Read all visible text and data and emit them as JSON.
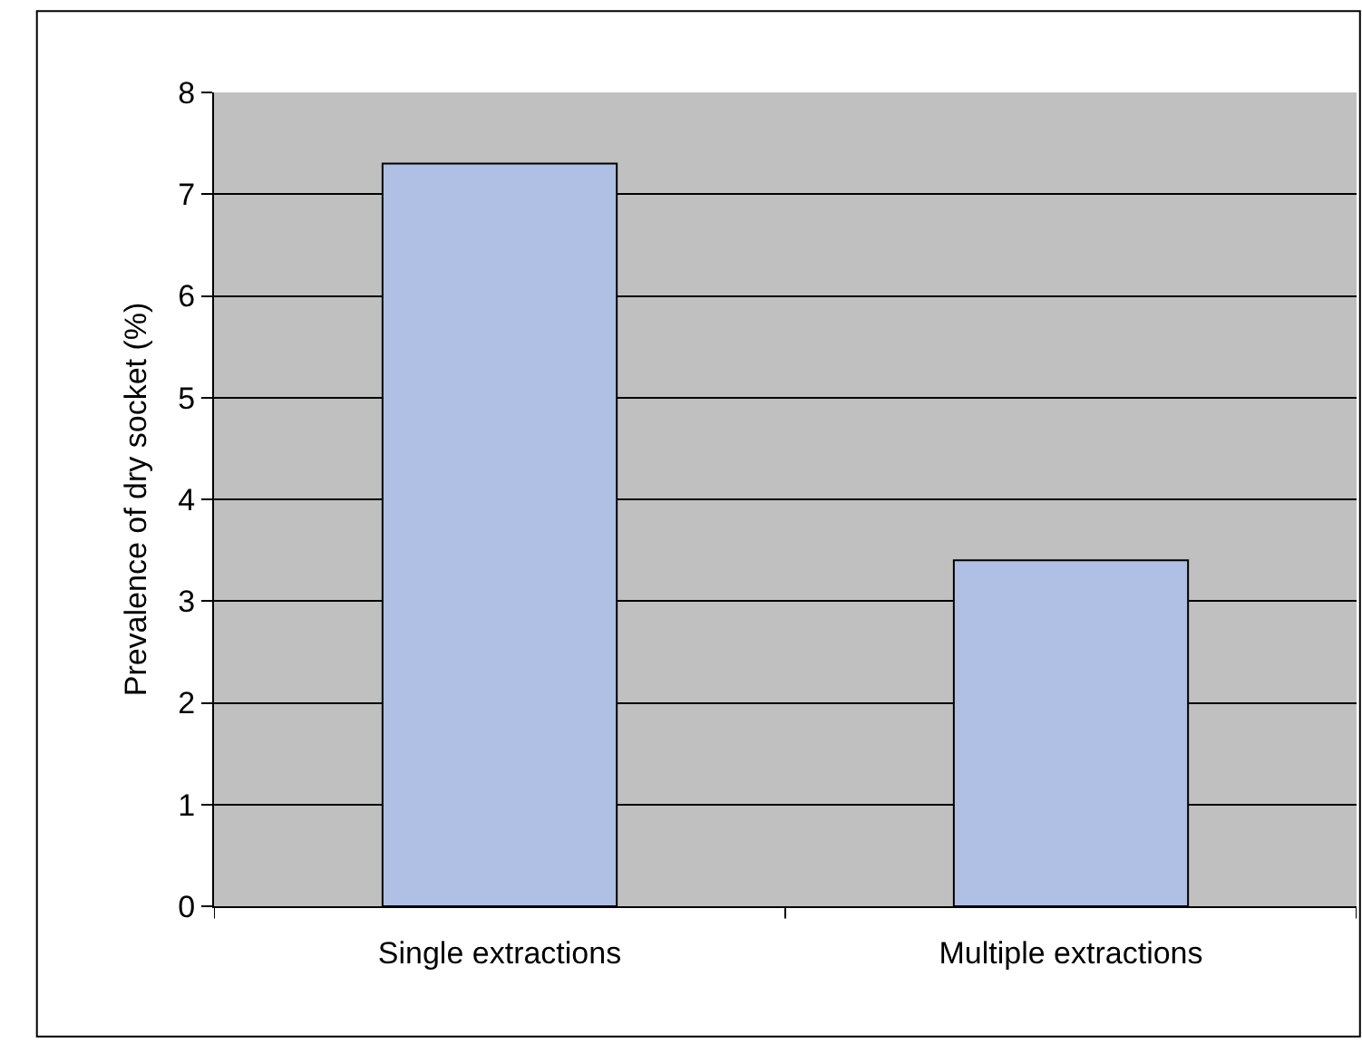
{
  "chart_data": {
    "type": "bar",
    "ylabel": "Prevalence of dry socket (%)",
    "categories": [
      "Single extractions",
      "Multiple extractions"
    ],
    "values": [
      7.3,
      3.4
    ],
    "color": "#b0c0e4",
    "ylim": [
      0,
      8
    ],
    "yticks": [
      0,
      1,
      2,
      3,
      4,
      5,
      6,
      7,
      8
    ],
    "grid": "y"
  }
}
